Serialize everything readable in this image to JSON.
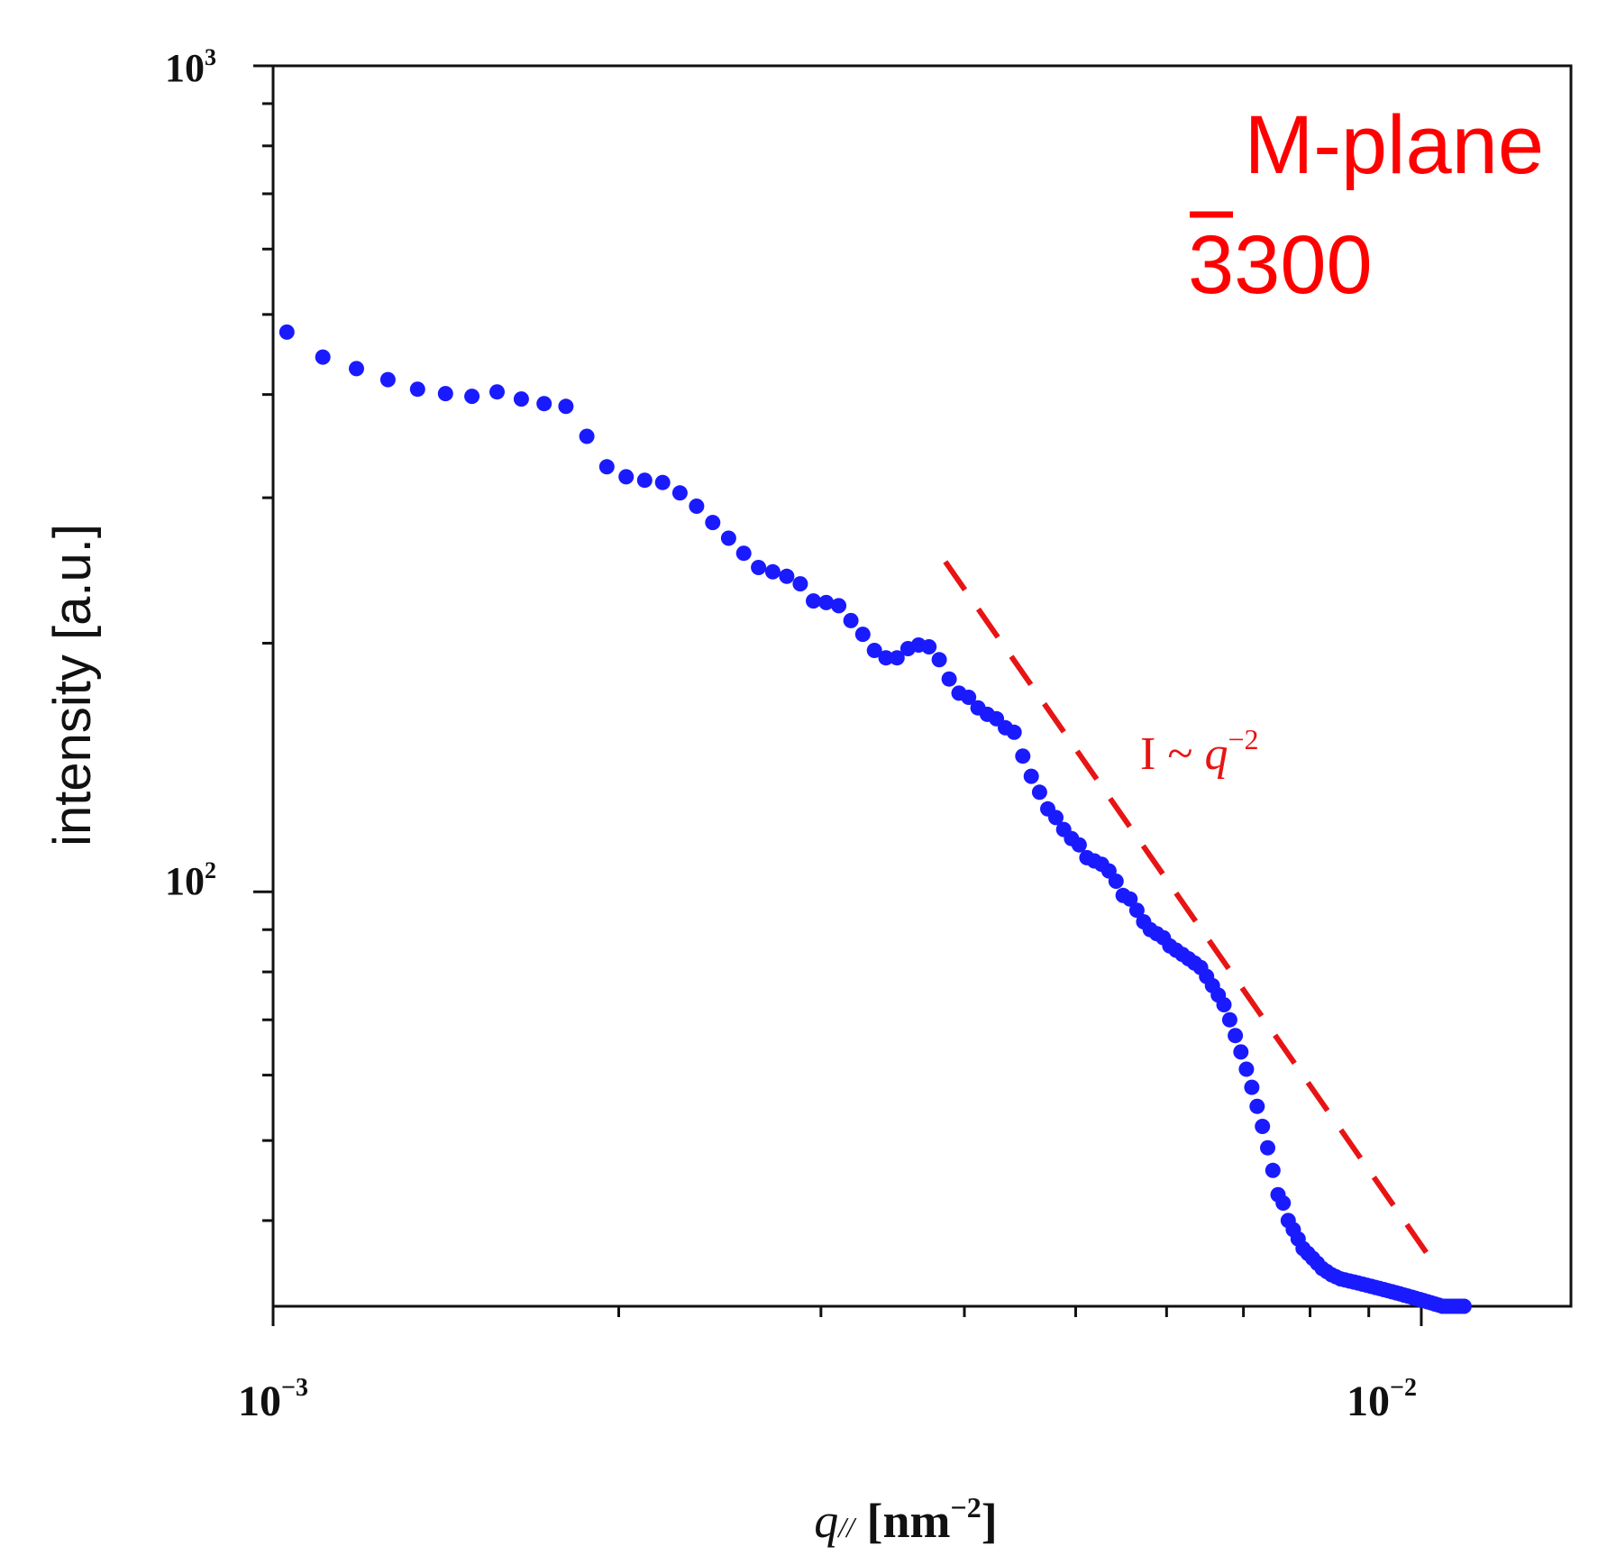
{
  "chart_data": {
    "type": "scatter",
    "title": "",
    "xlabel": "q// [nm⁻²]",
    "xlabel_parts": {
      "var": "q",
      "sub": "//",
      "unit_open": " [nm",
      "unit_exp": "−2",
      "unit_close": "]"
    },
    "ylabel": "intensity [a.u.]",
    "x_scale": "log",
    "y_scale": "log",
    "xlim": [
      0.001,
      0.0135
    ],
    "ylim": [
      31.5,
      1000
    ],
    "x_ticks": [
      {
        "value": 0.001,
        "base": "10",
        "exp": "−3"
      },
      {
        "value": 0.01,
        "base": "10",
        "exp": "−2"
      }
    ],
    "y_ticks": [
      {
        "value": 100,
        "base": "10",
        "exp": "2"
      },
      {
        "value": 1000,
        "base": "10",
        "exp": "3"
      }
    ],
    "legend": {
      "line1": "M-plane",
      "line2": "3300",
      "overbar_char": "3",
      "position": "top-right"
    },
    "annotation": {
      "prefix": "I ~ ",
      "var": "q",
      "exp": "−2"
    },
    "colors": {
      "points": "#1a1aff",
      "fit": "#e81414",
      "legend": "#ff0000",
      "axes": "#111111"
    },
    "fit_line": {
      "label": "I ~ q^-2",
      "x": [
        0.00385,
        0.0101
      ],
      "y": [
        251,
        36.6
      ],
      "style": "dashed"
    },
    "series": [
      {
        "name": "M-plane 3300",
        "x": [
          0.001028,
          0.001105,
          0.001182,
          0.001259,
          0.001336,
          0.001413,
          0.00149,
          0.001567,
          0.001645,
          0.001722,
          0.001799,
          0.001876,
          0.001953,
          0.00203,
          0.002107,
          0.002184,
          0.002261,
          0.002338,
          0.002415,
          0.002493,
          0.00257,
          0.002647,
          0.002724,
          0.002801,
          0.002878,
          0.002955,
          0.003032,
          0.003109,
          0.003186,
          0.003263,
          0.00334,
          0.003418,
          0.003495,
          0.003572,
          0.003649,
          0.003726,
          0.003803,
          0.00388,
          0.003957,
          0.004034,
          0.004111,
          0.004188,
          0.004266,
          0.004343,
          0.00442,
          0.004497,
          0.004574,
          0.004651,
          0.004728,
          0.004805,
          0.004882,
          0.004959,
          0.005036,
          0.005114,
          0.005191,
          0.005268,
          0.005345,
          0.005422,
          0.005499,
          0.005576,
          0.005653,
          0.00573,
          0.005807,
          0.005884,
          0.005962,
          0.006039,
          0.006116,
          0.006193,
          0.00627,
          0.006347,
          0.006424,
          0.006501,
          0.006578,
          0.006655,
          0.006732,
          0.00681,
          0.006887,
          0.006964,
          0.007041,
          0.007118,
          0.007195,
          0.007272,
          0.007349,
          0.007426,
          0.007503,
          0.00758,
          0.007657,
          0.007735,
          0.007812,
          0.007889,
          0.007966,
          0.008043,
          0.00812,
          0.008197,
          0.008274,
          0.008351,
          0.008428,
          0.008505,
          0.008583,
          0.00866,
          0.008737,
          0.008814,
          0.008891,
          0.008968,
          0.009045,
          0.009122,
          0.009199,
          0.009276,
          0.009353,
          0.00943,
          0.009508,
          0.009585,
          0.009662,
          0.009739,
          0.009816,
          0.009893,
          0.00997,
          0.010047,
          0.010124,
          0.010201,
          0.010278,
          0.010356,
          0.010433,
          0.01051,
          0.010587,
          0.010664,
          0.010741,
          0.010818,
          0.010895
        ],
        "y": [
          476,
          444,
          430,
          417,
          406,
          401,
          398,
          403,
          395,
          390,
          387,
          356,
          327,
          318,
          315,
          313,
          304,
          293,
          280,
          268,
          257,
          247,
          244,
          241,
          236,
          225,
          224,
          222,
          213,
          205,
          196,
          192,
          192,
          197,
          199,
          198,
          191,
          181,
          174,
          172,
          167,
          164,
          162,
          158,
          156,
          146,
          138,
          132,
          126,
          123,
          119,
          116,
          114,
          110,
          109,
          108,
          106,
          103,
          99,
          98,
          95,
          92,
          90,
          89,
          88,
          86,
          85,
          84,
          83,
          82,
          81,
          79,
          77,
          75,
          73,
          70,
          67,
          64,
          61,
          58,
          55,
          52,
          49,
          46,
          43,
          42,
          40,
          39,
          38,
          37,
          36.5,
          36,
          35.5,
          35,
          34.7,
          34.4,
          34.2,
          34.0,
          33.9,
          33.8,
          33.7,
          33.6,
          33.5,
          33.4,
          33.3,
          33.2,
          33.1,
          33.0,
          32.9,
          32.8,
          32.7,
          32.6,
          32.5,
          32.4,
          32.3,
          32.2,
          32.1,
          32.0,
          31.9,
          31.8,
          31.7,
          31.6,
          31.5,
          31.5,
          31.5,
          31.5,
          31.5,
          31.5,
          31.5
        ],
        "note": "values digitized from the plot"
      }
    ]
  }
}
